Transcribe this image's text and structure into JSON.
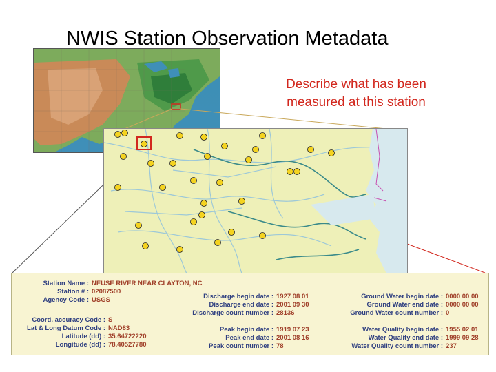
{
  "slide": {
    "title": "NWIS Station Observation Metadata",
    "callout_line1": "Describe what has been",
    "callout_line2": "measured at this station"
  },
  "colors": {
    "callout_text": "#d2281e",
    "label_text": "#2f3f80",
    "value_text": "#a0402a",
    "panel_bg": "#f8f4d2",
    "detail_map_bg": "#eef0b8",
    "selection_box": "#d2281e"
  },
  "metadata": {
    "station_name": {
      "label": "Station Name :",
      "value": "NEUSE RIVER NEAR CLAYTON, NC"
    },
    "station_number": {
      "label": "Station # :",
      "value": "02087500"
    },
    "agency_code": {
      "label": "Agency Code :",
      "value": "USGS"
    },
    "coord_accuracy": {
      "label": "Coord. accuracy Code :",
      "value": "S"
    },
    "datum_code": {
      "label": "Lat & Long Datum Code :",
      "value": "NAD83"
    },
    "latitude": {
      "label": "Latitude (dd) :",
      "value": "35.64722220"
    },
    "longitude": {
      "label": "Longitude (dd) :",
      "value": "78.40527780"
    },
    "discharge_begin": {
      "label": "Discharge begin date :",
      "value": "1927 08 01"
    },
    "discharge_end": {
      "label": "Discharge end date :",
      "value": "2001 09 30"
    },
    "discharge_count": {
      "label": "Discharge count number :",
      "value": "28136"
    },
    "peak_begin": {
      "label": "Peak begin date :",
      "value": "1919 07 23"
    },
    "peak_end": {
      "label": "Peak end date :",
      "value": "2001 08 16"
    },
    "peak_count": {
      "label": "Peak count number :",
      "value": "78"
    },
    "gw_begin": {
      "label": "Ground Water begin date :",
      "value": "0000 00 00"
    },
    "gw_end": {
      "label": "Ground Water end date :",
      "value": "0000 00 00"
    },
    "gw_count": {
      "label": "Ground Water count number :",
      "value": "0"
    },
    "wq_begin": {
      "label": "Water Quality begin date :",
      "value": "1955 02 01"
    },
    "wq_end": {
      "label": "Water Quality end date :",
      "value": "1999 09 28"
    },
    "wq_count": {
      "label": "Water Quality count number :",
      "value": "237"
    }
  }
}
